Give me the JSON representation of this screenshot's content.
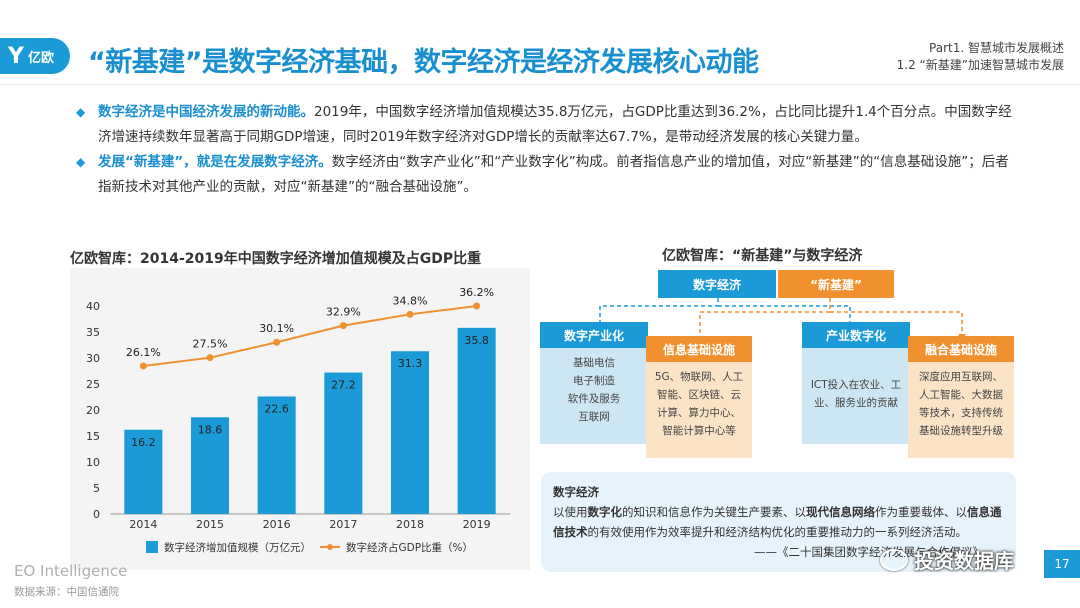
{
  "header": {
    "logo_mark": "Y",
    "logo_text": "亿欧",
    "title": "“新基建”是数字经济基础，数字经济是经济发展核心动能",
    "part_line1": "Part1. 智慧城市发展概述",
    "part_line2": "1.2 “新基建”加速智慧城市发展"
  },
  "bullets": [
    {
      "bold": "数字经济是中国经济发展的新动能。",
      "text": "2019年，中国数字经济增加值规模达35.8万亿元，占GDP比重达到36.2%，占比同比提升1.4个百分点。中国数字经济增速持续数年显著高于同期GDP增速，同时2019年数字经济对GDP增长的贡献率达67.7%，是带动经济发展的核心关键力量。"
    },
    {
      "bold": "发展“新基建”，就是在发展数字经济。",
      "text": "数字经济由“数字产业化”和“产业数字化”构成。前者指信息产业的增加值，对应“新基建”的“信息基础设施”；后者指新技术对其他产业的贡献，对应“新基建”的“融合基础设施”。"
    }
  ],
  "chart_data": {
    "type": "bar",
    "title": "亿欧智库：2014-2019年中国数字经济增加值规模及占GDP比重",
    "categories": [
      "2014",
      "2015",
      "2016",
      "2017",
      "2018",
      "2019"
    ],
    "series": [
      {
        "name": "数字经济增加值规模（万亿元）",
        "type": "bar",
        "values": [
          16.2,
          18.6,
          22.6,
          27.2,
          31.3,
          35.8
        ],
        "labels": [
          "16.2",
          "18.6",
          "22.6",
          "27.2",
          "31.3",
          "35.8"
        ]
      },
      {
        "name": "数字经济占GDP比重（%）",
        "type": "line",
        "values": [
          26.1,
          27.5,
          30.1,
          32.9,
          34.8,
          36.2
        ],
        "labels": [
          "26.1%",
          "27.5%",
          "30.1%",
          "32.9%",
          "34.8%",
          "36.2%"
        ]
      }
    ],
    "yticks": [
      "0",
      "5",
      "10",
      "15",
      "20",
      "25",
      "30",
      "35",
      "40"
    ],
    "ylim": [
      0,
      40
    ],
    "colors": {
      "bar": "#1a9ad6",
      "line": "#f0902e"
    }
  },
  "diagram": {
    "title": "亿欧智库：“新基建”与数字经济",
    "top_left": "数字经济",
    "top_right": "“新基建”",
    "digital_industry": "数字产业化",
    "info_infra": "信息基础设施",
    "industry_digital": "产业数字化",
    "fusion_infra": "融合基础设施",
    "digital_industry_items": [
      "基础电信",
      "电子制造",
      "软件及服务",
      "互联网"
    ],
    "info_infra_items": [
      "5G、物联网、人工",
      "智能、区块链、云",
      "计算、算力中心、",
      "智能计算中心等"
    ],
    "industry_digital_items": [
      "ICT投入在农业、工",
      "业、服务业的贡献"
    ],
    "fusion_infra_items": [
      "深度应用互联网、",
      "人工智能、大数据",
      "等技术，支持传统",
      "基础设施转型升级"
    ]
  },
  "definition": {
    "title": "数字经济",
    "p1": "以使用",
    "b1": "数字化",
    "p2": "的知识和信息作为关键生产要素、以",
    "b2": "现代信息网络",
    "p3": "作为重要载体、以",
    "b3": "信息通信技术",
    "p4": "的有效使用作为效率提升和经济结构优化的重要推动力的一系列经济活动。",
    "quote": "——《二十国集团数字经济发展与合作倡议》"
  },
  "watermark": "投资数据库",
  "page_number": "17",
  "footer": {
    "brand": "EO Intelligence",
    "source": "数据来源：中国信通院"
  },
  "colors": {
    "blue": "#1a9ad6",
    "orange": "#f0902e",
    "light_blue": "#cde6f4",
    "light_orange": "#fbe3c6"
  }
}
